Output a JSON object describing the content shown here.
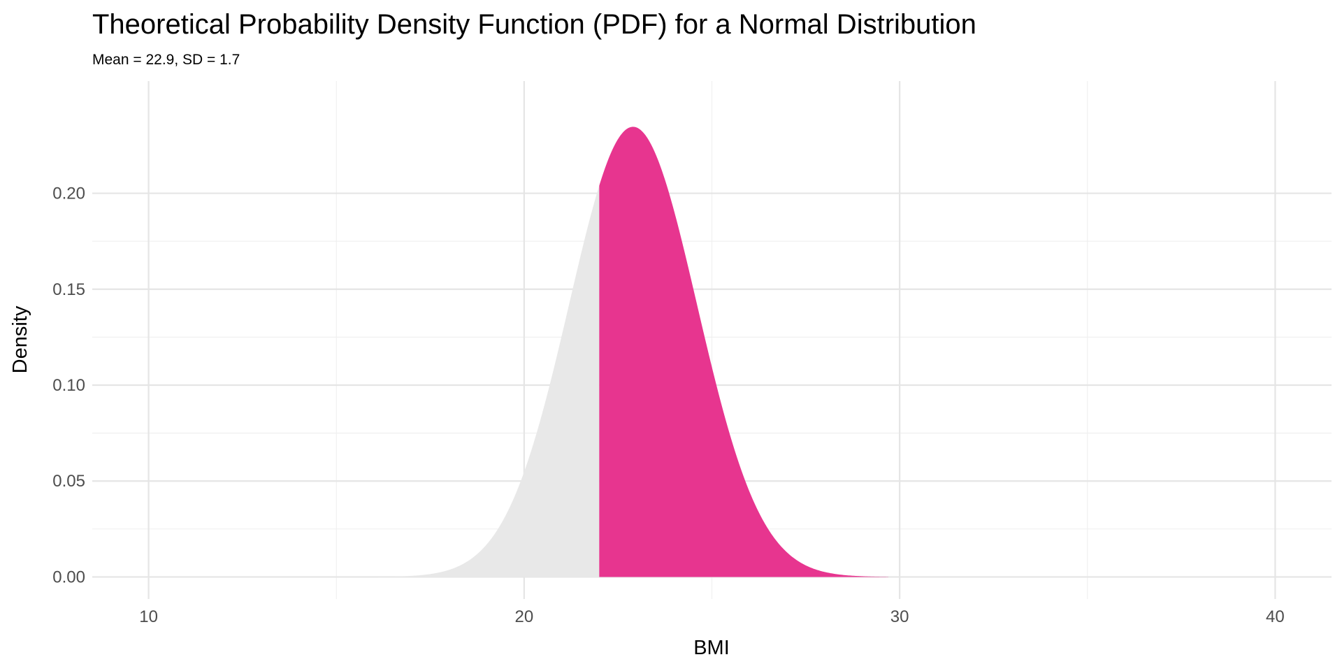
{
  "chart_data": {
    "type": "area",
    "title": "Theoretical Probability Density Function (PDF) for a Normal Distribution",
    "subtitle": "Mean = 22.9, SD = 1.7",
    "xlabel": "BMI",
    "ylabel": "Density",
    "distribution": "normal",
    "mean": 22.9,
    "sd": 1.7,
    "curve_x_range": [
      16.1,
      29.7
    ],
    "shaded_from": 22.0,
    "shaded_color": "#E7358F",
    "unshaded_color": "#E8E8E8",
    "xlim": [
      8.5,
      41.5
    ],
    "ylim": [
      -0.0115,
      0.2585
    ],
    "x_ticks": [
      10,
      20,
      30,
      40
    ],
    "x_tick_labels": [
      "10",
      "20",
      "30",
      "40"
    ],
    "y_ticks": [
      0,
      0.05,
      0.1,
      0.15,
      0.2
    ],
    "y_tick_labels": [
      "0.00",
      "0.05",
      "0.10",
      "0.15",
      "0.20"
    ],
    "grid": true,
    "peak_density": 0.2347
  }
}
